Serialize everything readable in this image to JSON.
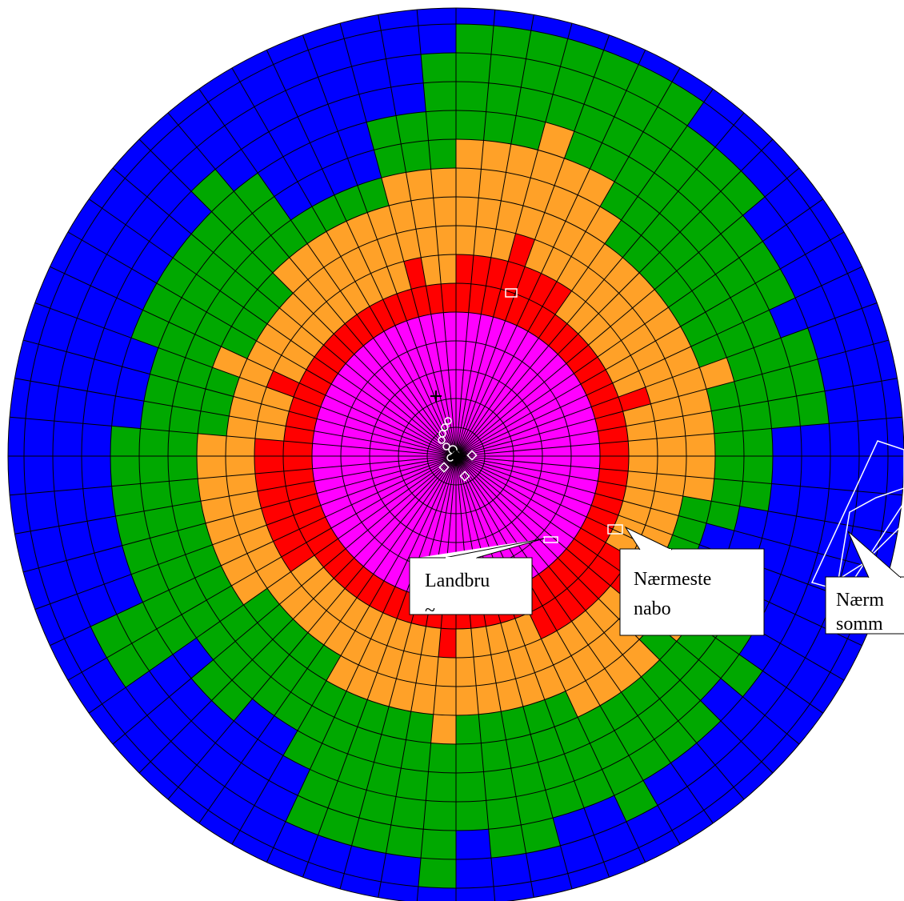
{
  "zone_colors": {
    "innermost": "#ff00ff",
    "second": "#ff0000",
    "third": "#ffa128",
    "fourth": "#00a800",
    "outer": "#0000ff"
  },
  "grid_line_color": "#000000",
  "callouts": [
    {
      "id": "landbrug",
      "lines": [
        "Landbru",
        "~"
      ]
    },
    {
      "id": "naermeste-nabo",
      "lines": [
        "Nærmeste",
        "nabo"
      ]
    },
    {
      "id": "naermeste-sommerhus",
      "lines": [
        "Nærm",
        "somm"
      ]
    }
  ]
}
